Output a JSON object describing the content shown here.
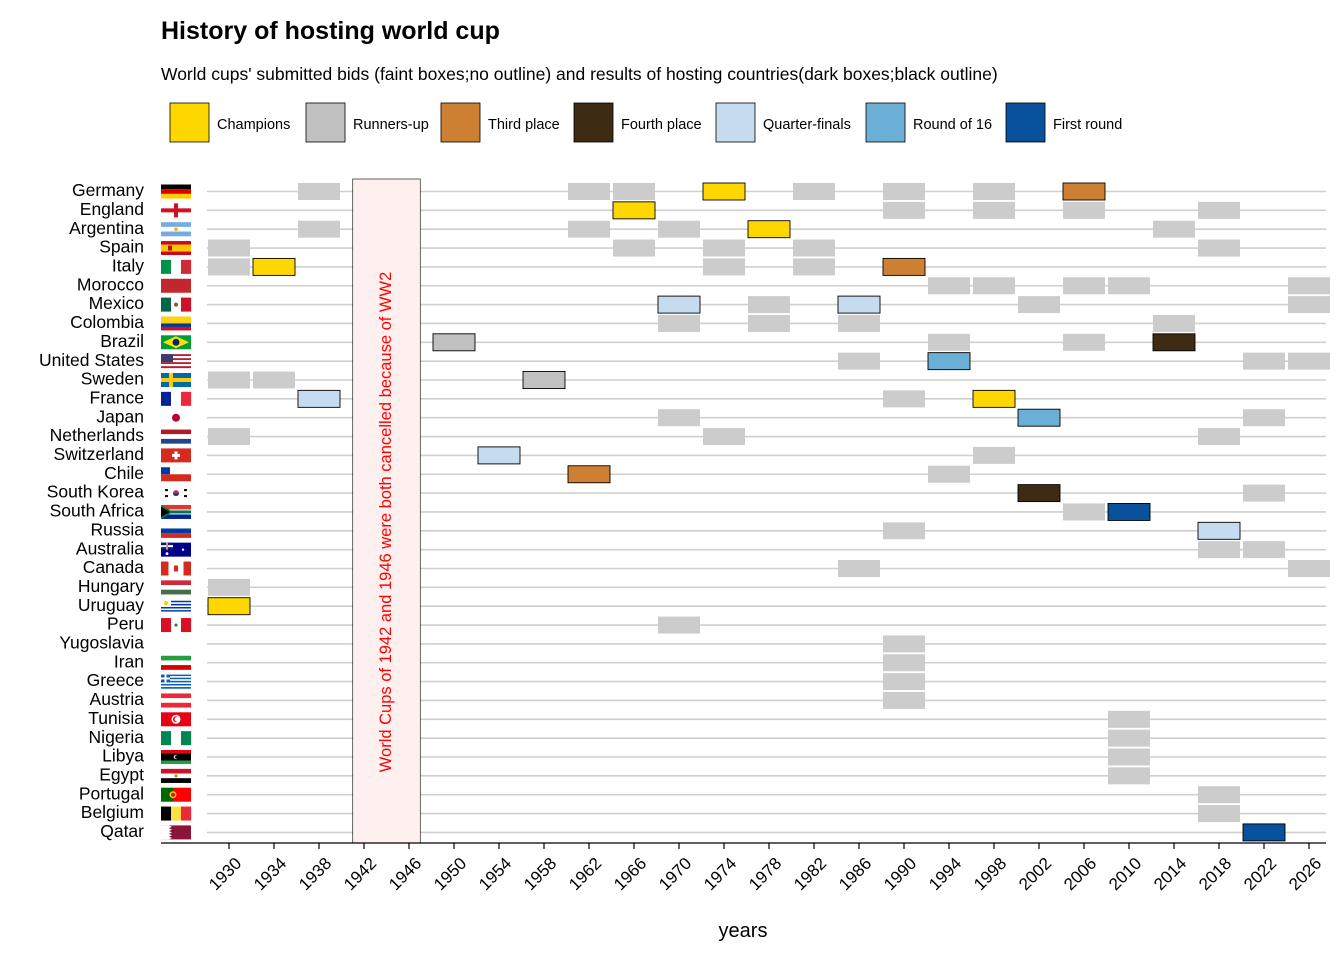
{
  "chart_data": {
    "type": "timeline",
    "title": "History of hosting world cup",
    "subtitle": "World cups' submitted bids (faint boxes;no outline) and results of hosting countries(dark boxes;black outline)",
    "xlabel": "years",
    "ylabel": "",
    "x_ticks": [
      1930,
      1934,
      1938,
      1942,
      1946,
      1950,
      1954,
      1958,
      1962,
      1966,
      1970,
      1974,
      1978,
      1982,
      1986,
      1990,
      1994,
      1998,
      2002,
      2006,
      2010,
      2014,
      2018,
      2022,
      2026
    ],
    "xlim": [
      1926,
      2028
    ],
    "cancelled_years": [
      1942,
      1946
    ],
    "annotation": "World Cups of 1942 and 1946 were both cancelled because of WW2",
    "legend_position": "top",
    "legend": [
      {
        "key": "champions",
        "label": "Champions",
        "color": "#ffd700"
      },
      {
        "key": "runners_up",
        "label": "Runners-up",
        "color": "#c0c0c0"
      },
      {
        "key": "third_place",
        "label": "Third place",
        "color": "#cd7f32"
      },
      {
        "key": "fourth_place",
        "label": "Fourth place",
        "color": "#3d2b14"
      },
      {
        "key": "quarter_finals",
        "label": "Quarter-finals",
        "color": "#c6dbef"
      },
      {
        "key": "round_of_16",
        "label": "Round of 16",
        "color": "#6baed6"
      },
      {
        "key": "first_round",
        "label": "First round",
        "color": "#08519c"
      }
    ],
    "bid_color": "#cccccc",
    "countries": [
      {
        "name": "Germany",
        "flag": "germany-flag-icon",
        "bids": [
          1938,
          1962,
          1966,
          1982,
          1990,
          1998
        ],
        "hosted": [
          {
            "year": 1974,
            "result": "champions"
          },
          {
            "year": 2006,
            "result": "third_place"
          }
        ]
      },
      {
        "name": "England",
        "flag": "england-flag-icon",
        "bids": [
          1990,
          1998,
          2006,
          2018
        ],
        "hosted": [
          {
            "year": 1966,
            "result": "champions"
          }
        ]
      },
      {
        "name": "Argentina",
        "flag": "argentina-flag-icon",
        "bids": [
          1938,
          1962,
          1970,
          2014
        ],
        "hosted": [
          {
            "year": 1978,
            "result": "champions"
          }
        ]
      },
      {
        "name": "Spain",
        "flag": "spain-flag-icon",
        "bids": [
          1930,
          1966,
          1974,
          1982,
          2018
        ],
        "hosted": []
      },
      {
        "name": "Italy",
        "flag": "italy-flag-icon",
        "bids": [
          1930,
          1974,
          1982
        ],
        "hosted": [
          {
            "year": 1934,
            "result": "champions"
          },
          {
            "year": 1990,
            "result": "third_place"
          }
        ]
      },
      {
        "name": "Morocco",
        "flag": "morocco-flag-icon",
        "bids": [
          1994,
          1998,
          2006,
          2010,
          2026
        ],
        "hosted": []
      },
      {
        "name": "Mexico",
        "flag": "mexico-flag-icon",
        "bids": [
          1978,
          2002,
          2026
        ],
        "hosted": [
          {
            "year": 1970,
            "result": "quarter_finals"
          },
          {
            "year": 1986,
            "result": "quarter_finals"
          }
        ]
      },
      {
        "name": "Colombia",
        "flag": "colombia-flag-icon",
        "bids": [
          1970,
          1978,
          1986,
          2014
        ],
        "hosted": []
      },
      {
        "name": "Brazil",
        "flag": "brazil-flag-icon",
        "bids": [
          1994,
          2006
        ],
        "hosted": [
          {
            "year": 1950,
            "result": "runners_up"
          },
          {
            "year": 2014,
            "result": "fourth_place"
          }
        ]
      },
      {
        "name": "United States",
        "flag": "united-states-flag-icon",
        "bids": [
          1986,
          2022,
          2026
        ],
        "hosted": [
          {
            "year": 1994,
            "result": "round_of_16"
          }
        ]
      },
      {
        "name": "Sweden",
        "flag": "sweden-flag-icon",
        "bids": [
          1930,
          1934
        ],
        "hosted": [
          {
            "year": 1958,
            "result": "runners_up"
          }
        ]
      },
      {
        "name": "France",
        "flag": "france-flag-icon",
        "bids": [
          1990
        ],
        "hosted": [
          {
            "year": 1938,
            "result": "quarter_finals"
          },
          {
            "year": 1998,
            "result": "champions"
          }
        ]
      },
      {
        "name": "Japan",
        "flag": "japan-flag-icon",
        "bids": [
          1970,
          2022
        ],
        "hosted": [
          {
            "year": 2002,
            "result": "round_of_16"
          }
        ]
      },
      {
        "name": "Netherlands",
        "flag": "netherlands-flag-icon",
        "bids": [
          1930,
          1974,
          2018
        ],
        "hosted": []
      },
      {
        "name": "Switzerland",
        "flag": "switzerland-flag-icon",
        "bids": [
          1998
        ],
        "hosted": [
          {
            "year": 1954,
            "result": "quarter_finals"
          }
        ]
      },
      {
        "name": "Chile",
        "flag": "chile-flag-icon",
        "bids": [
          1994
        ],
        "hosted": [
          {
            "year": 1962,
            "result": "third_place"
          }
        ]
      },
      {
        "name": "South Korea",
        "flag": "south-korea-flag-icon",
        "bids": [
          2022
        ],
        "hosted": [
          {
            "year": 2002,
            "result": "fourth_place"
          }
        ]
      },
      {
        "name": "South Africa",
        "flag": "south-africa-flag-icon",
        "bids": [
          2006
        ],
        "hosted": [
          {
            "year": 2010,
            "result": "first_round"
          }
        ]
      },
      {
        "name": "Russia",
        "flag": "russia-flag-icon",
        "bids": [
          1990
        ],
        "hosted": [
          {
            "year": 2018,
            "result": "quarter_finals"
          }
        ]
      },
      {
        "name": "Australia",
        "flag": "australia-flag-icon",
        "bids": [
          2018,
          2022
        ],
        "hosted": []
      },
      {
        "name": "Canada",
        "flag": "canada-flag-icon",
        "bids": [
          1986,
          2026
        ],
        "hosted": []
      },
      {
        "name": "Hungary",
        "flag": "hungary-flag-icon",
        "bids": [
          1930
        ],
        "hosted": []
      },
      {
        "name": "Uruguay",
        "flag": "uruguay-flag-icon",
        "bids": [],
        "hosted": [
          {
            "year": 1930,
            "result": "champions"
          }
        ]
      },
      {
        "name": "Peru",
        "flag": "peru-flag-icon",
        "bids": [
          1970
        ],
        "hosted": []
      },
      {
        "name": "Yugoslavia",
        "flag": "yugoslavia-flag-icon",
        "bids": [
          1990
        ],
        "hosted": []
      },
      {
        "name": "Iran",
        "flag": "iran-flag-icon",
        "bids": [
          1990
        ],
        "hosted": []
      },
      {
        "name": "Greece",
        "flag": "greece-flag-icon",
        "bids": [
          1990
        ],
        "hosted": []
      },
      {
        "name": "Austria",
        "flag": "austria-flag-icon",
        "bids": [
          1990
        ],
        "hosted": []
      },
      {
        "name": "Tunisia",
        "flag": "tunisia-flag-icon",
        "bids": [
          2010
        ],
        "hosted": []
      },
      {
        "name": "Nigeria",
        "flag": "nigeria-flag-icon",
        "bids": [
          2010
        ],
        "hosted": []
      },
      {
        "name": "Libya",
        "flag": "libya-flag-icon",
        "bids": [
          2010
        ],
        "hosted": []
      },
      {
        "name": "Egypt",
        "flag": "egypt-flag-icon",
        "bids": [
          2010
        ],
        "hosted": []
      },
      {
        "name": "Portugal",
        "flag": "portugal-flag-icon",
        "bids": [
          2018
        ],
        "hosted": []
      },
      {
        "name": "Belgium",
        "flag": "belgium-flag-icon",
        "bids": [
          2018
        ],
        "hosted": []
      },
      {
        "name": "Qatar",
        "flag": "qatar-flag-icon",
        "bids": [],
        "hosted": [
          {
            "year": 2022,
            "result": "first_round"
          }
        ]
      }
    ]
  }
}
